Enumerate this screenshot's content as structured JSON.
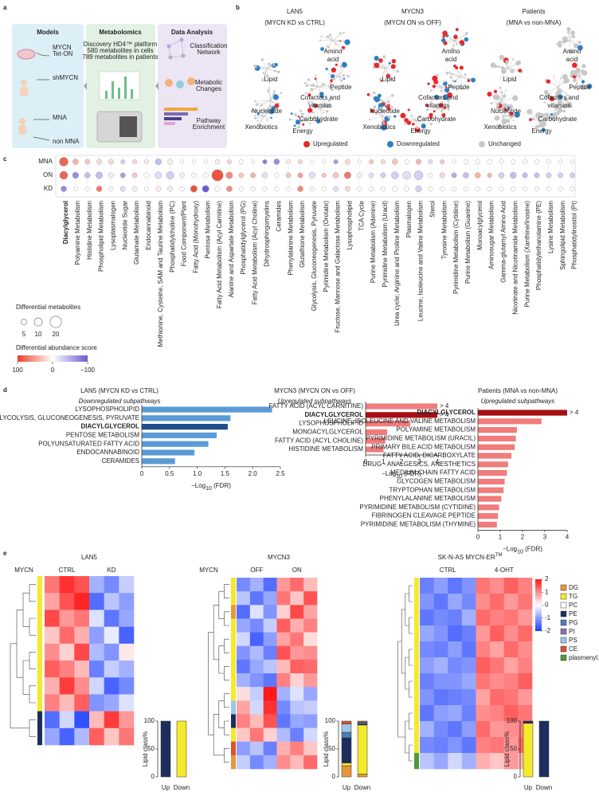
{
  "panel_labels": [
    "a",
    "b",
    "c",
    "d",
    "e"
  ],
  "a": {
    "models": {
      "title": "Models",
      "items": [
        [
          "MYCN",
          "Tet-ON"
        ],
        [
          "shMYCN"
        ],
        [
          "MNA"
        ],
        [
          "non MNA"
        ]
      ]
    },
    "metabolomics": {
      "title": "Metabolomics",
      "lines": [
        "Discovery HD4™ platform",
        "580 metabolites in cells",
        "789 metabolites in patients"
      ]
    },
    "analysis": {
      "title": "Data Analysis",
      "items": [
        [
          "Classification",
          "Network"
        ],
        [
          "Metabolic",
          "Changes"
        ],
        [
          "Pathway",
          "Enrichment"
        ]
      ]
    }
  },
  "b": {
    "networks": [
      {
        "title": "LAN5",
        "subtitle": "(MYCN KD vs CTRL)"
      },
      {
        "title": "MYCN3",
        "subtitle": "(MYCN ON vs OFF)"
      },
      {
        "title": "Patients",
        "subtitle": "(MNA vs non-MNA)"
      }
    ],
    "labels": [
      [
        "Lipid"
      ],
      [
        "Amino",
        "acid"
      ],
      [
        "Cofactors and",
        "vitamins"
      ],
      [
        "Peptide"
      ],
      [
        "Nucleotide"
      ],
      [
        "Carbohydrate"
      ],
      [
        "Energy"
      ],
      [
        "Xenobiotics"
      ]
    ],
    "legend": [
      {
        "name": "Upregulated",
        "color": "#e8282b"
      },
      {
        "name": "Downregulated",
        "color": "#2f7fc1"
      },
      {
        "name": "Unchanged",
        "color": "#c8c8c8"
      }
    ]
  },
  "lipid_classes": [
    {
      "name": "DG",
      "color": "#e8963a"
    },
    {
      "name": "TG",
      "color": "#f5e92c"
    },
    {
      "name": "PC",
      "color": "#ffffff"
    },
    {
      "name": "PE",
      "color": "#1c2e5e"
    },
    {
      "name": "PG",
      "color": "#4a7fb0"
    },
    {
      "name": "PI",
      "color": "#8a6fb5"
    },
    {
      "name": "PS",
      "color": "#9ec6e8"
    },
    {
      "name": "CE",
      "color": "#d9542b"
    },
    {
      "name": "plasmenyl.PE",
      "color": "#4f9a3a"
    }
  ],
  "chart_data": [
    {
      "type": "bubble",
      "rows": [
        "MNA",
        "ON",
        "KD"
      ],
      "categories": [
        "Diacylglycerol",
        "Polyamine Metabolism",
        "Histidine Metabolism",
        "Phospholipid Metabolism",
        "Lysoplasmalogen",
        "Nucleotide Sugar",
        "Glutamate Metabolism",
        "Endocannabinoid",
        "Methionine, Cysteine, SAM and Taurine Metabolism",
        "Phosphatidylcholine (PC)",
        "Food Component/Plant",
        "Fatty Acid (Monohydroxy)",
        "Pentose Metabolism",
        "Fatty Acid Metabolism (Acyl Carnitine)",
        "Alanine and Aspartate Metabolism",
        "Phosphatidylglycerol (PG)",
        "Fatty Acid Metabolism (Acyl Choline)",
        "Dihydrosphingomyelins",
        "Ceramides",
        "Phenylalanine Metabolism",
        "Glutathione Metabolism",
        "Glycolysis, Gluconeogenesis, Pyruvate",
        "Pyrimidine Metabolism (Orotate)",
        "Fructose, Mannose and Galactose Metabolism",
        "Lysophospholipid",
        "TCA Cycle",
        "Purine Metabolism (Adenine)",
        "Pyrimidine Metabolism (Uracil)",
        "Urea cycle; Arginine and Proline Metabolism",
        "Plasmalogen",
        "Leucine, Isoleucine and Valine Metabolism",
        "Sterol",
        "Tyrosine Metabolism",
        "Pyrimidine Metabolism (Cytidine)",
        "Purine Metabolism (Guanine)",
        "Monoacylglycerol",
        "Aminosugar Metabolism",
        "Gamma-glutamyl Amino Acid",
        "Nicotinate and Nicotinamide Metabolism",
        "Purine Metabolism (Xanthine/Inosine)",
        "Phosphatidylethanolamine (PE)",
        "Lysine Metabolism",
        "Sphingolipid Metabolism",
        "Phosphatidylinositol (PI)"
      ],
      "emphasis": [
        0
      ],
      "emphasis_color": "#e0262a",
      "sizes": [
        [
          12,
          5,
          4,
          4,
          4,
          3,
          3,
          3,
          6,
          4,
          2,
          2,
          2,
          3,
          3,
          3,
          2,
          3,
          5,
          3,
          3,
          2,
          2,
          3,
          4,
          2,
          3,
          3,
          5,
          3,
          4,
          3,
          3,
          2,
          3,
          3,
          3,
          3,
          3,
          3,
          3,
          3,
          2,
          2
        ],
        [
          10,
          6,
          5,
          7,
          4,
          4,
          4,
          4,
          7,
          9,
          4,
          3,
          4,
          20,
          7,
          4,
          4,
          5,
          3,
          4,
          4,
          6,
          3,
          5,
          7,
          4,
          4,
          4,
          8,
          10,
          12,
          3,
          4,
          4,
          5,
          5,
          3,
          5,
          6,
          4,
          4,
          4,
          4,
          4
        ],
        [
          5,
          3,
          3,
          5,
          3,
          4,
          4,
          3,
          4,
          4,
          3,
          7,
          7,
          4,
          5,
          3,
          3,
          3,
          3,
          3,
          5,
          3,
          3,
          4,
          4,
          3,
          3,
          3,
          4,
          4,
          6,
          3,
          3,
          3,
          3,
          3,
          3,
          3,
          3,
          3,
          3,
          3,
          3,
          3
        ]
      ],
      "scores": [
        [
          80,
          40,
          30,
          20,
          20,
          -30,
          20,
          10,
          -40,
          10,
          0,
          0,
          0,
          10,
          20,
          0,
          0,
          -80,
          -70,
          10,
          20,
          0,
          0,
          -60,
          20,
          0,
          30,
          20,
          30,
          0,
          40,
          -20,
          30,
          0,
          0,
          0,
          0,
          0,
          0,
          0,
          0,
          0,
          0,
          0
        ],
        [
          80,
          -70,
          -40,
          -40,
          -10,
          -60,
          30,
          0,
          -20,
          -30,
          -10,
          0,
          0,
          90,
          60,
          30,
          40,
          -20,
          0,
          30,
          50,
          -20,
          30,
          30,
          70,
          10,
          -20,
          -30,
          -30,
          -20,
          -30,
          0,
          20,
          -50,
          -40,
          40,
          40,
          -30,
          -40,
          -40,
          -40,
          -30,
          -30,
          -30
        ],
        [
          -70,
          0,
          0,
          70,
          0,
          -20,
          10,
          0,
          10,
          -10,
          0,
          90,
          -100,
          0,
          60,
          0,
          0,
          0,
          0,
          0,
          60,
          0,
          0,
          -20,
          20,
          0,
          0,
          0,
          0,
          0,
          -30,
          0,
          0,
          0,
          0,
          0,
          0,
          0,
          0,
          0,
          0,
          0,
          0,
          0
        ]
      ],
      "size_legend": {
        "title": "Differential metabolites",
        "values": [
          5,
          10,
          20
        ]
      },
      "color_legend": {
        "title": "Differential abundance score",
        "ticks": [
          100,
          0,
          {
            "value": -100,
            "label": "−100"
          }
        ],
        "colors": [
          "#e8402a",
          "#ffffff",
          "#6b5bd6"
        ]
      }
    },
    {
      "type": "bar",
      "title": "LAN5 (MYCN KD vs CTRL)",
      "subtitle": "Downregulated subpathways",
      "categories": [
        "LYSOPHOSPHOLIPID",
        "GLYCOLYSIS, GLUCONEOGENESIS, PYRUVATE",
        "DIACYLGLYCEROL",
        "PENTOSE METABOLISM",
        "POLYUNSATURATED FATTY ACID",
        "ENDOCANNABINOID",
        "CERAMIDES"
      ],
      "values": [
        2.35,
        1.6,
        1.55,
        1.35,
        1.2,
        0.95,
        0.6
      ],
      "colors": [
        "#5b9bd5",
        "#5b9bd5",
        "#1f4e8c",
        "#5b9bd5",
        "#5b9bd5",
        "#5b9bd5",
        "#5b9bd5"
      ],
      "emphasis": [
        2
      ],
      "xlim": [
        0,
        2.5
      ],
      "xticks": [
        0,
        0.5,
        {
          "value": 1,
          "label": "1.0"
        },
        1.5,
        {
          "value": 2,
          "label": "2.0"
        },
        2.5
      ],
      "x_label": [
        "−Log",
        "10",
        " (FDR)"
      ]
    },
    {
      "type": "bar",
      "title": "MYCN3 (MYCN ON vs OFF)",
      "subtitle": "Upregulated subpathways",
      "categories": [
        "FATTY ACID (ACYL CARNITINE)",
        "DIACYLGLYCEROL",
        "LYSOPHOSPHOLIPID",
        "MONOACYLGLYCEROL",
        "FATTY ACID (ACYL CHOLINE)",
        "HISTIDINE METABOLISM"
      ],
      "values": [
        4,
        4,
        2.5,
        1.2,
        1.1,
        1.0
      ],
      "value_labels": [
        "> 4",
        "> 4",
        null,
        null,
        null,
        null
      ],
      "colors": [
        "#f07c7c",
        "#a50f15",
        "#f07c7c",
        "#f07c7c",
        "#f07c7c",
        "#f07c7c"
      ],
      "emphasis": [
        1
      ],
      "xlim": [
        0,
        4
      ],
      "xticks": [
        0,
        1,
        2,
        3,
        4
      ],
      "x_label": [
        "−Log",
        "10",
        " (FDR)"
      ]
    },
    {
      "type": "bar",
      "title": "Patients (MNA vs non-MNA)",
      "subtitle": "Upregulated subpathways",
      "categories": [
        "DIACYLGLYCEROL",
        "LEUCINE, ISOLEUCINE AND VALINE METABOLISM",
        "POLYAMINE METABOLISM",
        "PYRIMIDINE METABOLISM (URACIL)",
        "PRIMARY BILE ACID METABOLISM",
        "FATTY ACID, DICARBOXYLATE",
        "DRUG - ANALGESICS, ANESTHETICS",
        "MEDIUM CHAIN FATTY ACID",
        "GLYCOGEN METABOLISM",
        "TRYPTOPHAN METABOLISM",
        "PHENYLALANINE METABOLISM",
        "PYRIMIDINE METABOLISM (CYTIDINE)",
        "FIBRINOGEN CLEAVAGE PEPTIDE",
        "PYRIMIDINE METABOLISM (THYMINE)"
      ],
      "values": [
        4,
        2.85,
        1.75,
        1.7,
        1.65,
        1.5,
        1.35,
        1.3,
        1.2,
        1.15,
        1.05,
        0.95,
        0.9,
        0.85
      ],
      "value_labels": [
        "> 4",
        null,
        null,
        null,
        null,
        null,
        null,
        null,
        null,
        null,
        null,
        null,
        null,
        null
      ],
      "colors": [
        "#a50f15",
        "#f07c7c",
        "#f07c7c",
        "#f07c7c",
        "#f07c7c",
        "#f07c7c",
        "#f07c7c",
        "#f07c7c",
        "#f07c7c",
        "#f07c7c",
        "#f07c7c",
        "#f07c7c",
        "#f07c7c",
        "#f07c7c"
      ],
      "emphasis": [
        0
      ],
      "xlim": [
        0,
        4
      ],
      "xticks": [
        0,
        1,
        2,
        3,
        4
      ],
      "x_label": [
        "−Log",
        "10",
        " (FDR)"
      ]
    },
    {
      "type": "heatmap",
      "title": "LAN5",
      "row_label": "MYCN",
      "groups": [
        "CTRL",
        "KD"
      ],
      "row_classes": [
        1,
        1,
        1,
        1,
        1,
        1,
        1,
        1,
        3,
        3
      ],
      "values": [
        [
          1.2,
          1.8,
          1.5,
          -0.8,
          -1.2,
          -0.5
        ],
        [
          0.8,
          1.5,
          1.9,
          -1.5,
          -0.6,
          -1.0
        ],
        [
          1.6,
          0.9,
          1.2,
          -0.3,
          -1.4,
          -0.9
        ],
        [
          0.5,
          1.3,
          0.7,
          -1.0,
          -0.2,
          -1.6
        ],
        [
          1.0,
          0.4,
          1.6,
          -0.7,
          -1.1,
          0.2
        ],
        [
          1.4,
          1.1,
          0.6,
          -1.3,
          -0.5,
          -0.8
        ],
        [
          0.7,
          1.7,
          1.0,
          -0.4,
          -1.6,
          -1.2
        ],
        [
          1.1,
          0.6,
          1.4,
          -1.1,
          -0.9,
          -0.3
        ],
        [
          -1.5,
          -0.4,
          -1.8,
          0.6,
          1.7,
          0.9
        ],
        [
          -0.9,
          -1.6,
          -0.7,
          1.4,
          0.5,
          1.2
        ]
      ],
      "lipid_bars": {
        "y_label": "Lipid class%",
        "categories": [
          "Up",
          "Down"
        ],
        "ylim": [
          0,
          100
        ],
        "yticks": [
          0,
          50,
          100
        ],
        "values": [
          [
            0,
            0
          ],
          [
            0,
            100
          ],
          [
            0,
            0
          ],
          [
            100,
            0
          ],
          [
            0,
            0
          ],
          [
            0,
            0
          ],
          [
            0,
            0
          ],
          [
            0,
            0
          ],
          [
            0,
            0
          ]
        ]
      }
    },
    {
      "type": "heatmap",
      "title": "MYCN3",
      "row_label": "MYCN",
      "groups": [
        "OFF",
        "ON"
      ],
      "row_classes": [
        1,
        1,
        0,
        1,
        1,
        1,
        1,
        1,
        1,
        6,
        3,
        1,
        7,
        0
      ],
      "values": [
        [
          -1.2,
          -0.8,
          -1.5,
          0.9,
          1.3,
          0.6
        ],
        [
          -0.6,
          -1.4,
          -0.9,
          1.2,
          0.5,
          1.5
        ],
        [
          -1.5,
          -0.3,
          -1.1,
          0.4,
          1.6,
          0.8
        ],
        [
          -0.9,
          -1.2,
          -0.5,
          1.4,
          0.7,
          1.1
        ],
        [
          -0.4,
          -1.6,
          -1.0,
          0.8,
          1.2,
          0.3
        ],
        [
          -1.1,
          -0.7,
          -1.3,
          1.5,
          0.9,
          1.0
        ],
        [
          -1.4,
          -0.9,
          -0.6,
          0.6,
          1.4,
          1.3
        ],
        [
          -0.8,
          -1.1,
          -1.4,
          1.1,
          0.4,
          0.9
        ],
        [
          0.3,
          -0.5,
          2.0,
          -0.8,
          -0.3,
          -0.9
        ],
        [
          0.8,
          -0.4,
          1.8,
          -1.2,
          -0.6,
          -0.5
        ],
        [
          1.1,
          0.6,
          1.5,
          -1.4,
          -0.9,
          -1.0
        ],
        [
          0.5,
          1.2,
          0.4,
          -0.7,
          -1.3,
          -0.4
        ],
        [
          -1.0,
          -0.6,
          -1.3,
          0.7,
          1.1,
          0.5
        ],
        [
          -0.5,
          -1.2,
          -0.8,
          1.0,
          0.6,
          1.3
        ]
      ],
      "lipid_bars": {
        "y_label": "Lipid class%",
        "categories": [
          "Up",
          "Down"
        ],
        "ylim": [
          0,
          100
        ],
        "yticks": [
          0,
          50,
          100
        ],
        "values": [
          [
            20,
            5
          ],
          [
            5,
            88
          ],
          [
            0,
            0
          ],
          [
            45,
            2
          ],
          [
            10,
            3
          ],
          [
            0,
            0
          ],
          [
            15,
            0
          ],
          [
            5,
            2
          ],
          [
            0,
            0
          ]
        ]
      }
    },
    {
      "type": "heatmap",
      "title": "SK-N-AS MYCN-ER",
      "title_sup": "TM",
      "groups": [
        "CTRL",
        "4-OHT"
      ],
      "row_classes": [
        1,
        1,
        1,
        1,
        1,
        1,
        1,
        1,
        1,
        1,
        1,
        8
      ],
      "values": [
        [
          -1.3,
          -1.0,
          -1.4,
          -1.1,
          1.2,
          1.0,
          1.4,
          1.1
        ],
        [
          -1.1,
          -1.4,
          -0.9,
          -1.2,
          1.0,
          1.3,
          0.9,
          1.2
        ],
        [
          -1.4,
          -1.2,
          -1.3,
          -0.8,
          1.3,
          1.1,
          1.2,
          0.9
        ],
        [
          -0.9,
          -1.1,
          -1.5,
          -1.3,
          0.9,
          1.4,
          1.0,
          1.3
        ],
        [
          -1.2,
          -1.3,
          -1.0,
          -1.4,
          1.1,
          0.8,
          1.3,
          1.0
        ],
        [
          -1.0,
          -0.8,
          -1.2,
          -1.1,
          1.4,
          1.2,
          0.8,
          1.1
        ],
        [
          -1.3,
          -1.1,
          -1.1,
          -0.9,
          1.2,
          1.0,
          1.1,
          1.4
        ],
        [
          -1.1,
          -1.4,
          -1.3,
          -1.2,
          0.8,
          1.3,
          1.2,
          0.9
        ],
        [
          -1.4,
          -1.0,
          -0.9,
          -1.3,
          1.0,
          1.1,
          1.4,
          1.2
        ],
        [
          -0.8,
          -1.2,
          -1.4,
          -1.0,
          1.3,
          0.9,
          1.0,
          1.1
        ],
        [
          -1.2,
          -1.3,
          -1.1,
          -1.4,
          1.1,
          1.2,
          0.9,
          1.3
        ],
        [
          -0.6,
          -0.9,
          -0.4,
          -0.8,
          0.7,
          0.5,
          0.9,
          0.6
        ]
      ],
      "lipid_bars": {
        "y_label": "Lipid class%",
        "categories": [
          "Up",
          "Down"
        ],
        "ylim": [
          0,
          100
        ],
        "yticks": [
          0,
          50,
          100
        ],
        "values": [
          [
            0,
            0
          ],
          [
            96,
            0
          ],
          [
            0,
            0
          ],
          [
            4,
            100
          ],
          [
            0,
            0
          ],
          [
            0,
            0
          ],
          [
            0,
            0
          ],
          [
            0,
            0
          ],
          [
            0,
            0
          ]
        ]
      },
      "colorbar": {
        "ticks": [
          2,
          1,
          0,
          -1,
          -2
        ],
        "colors": [
          "#1a3cff",
          "#ffffff",
          "#ff1a1a"
        ]
      }
    }
  ]
}
